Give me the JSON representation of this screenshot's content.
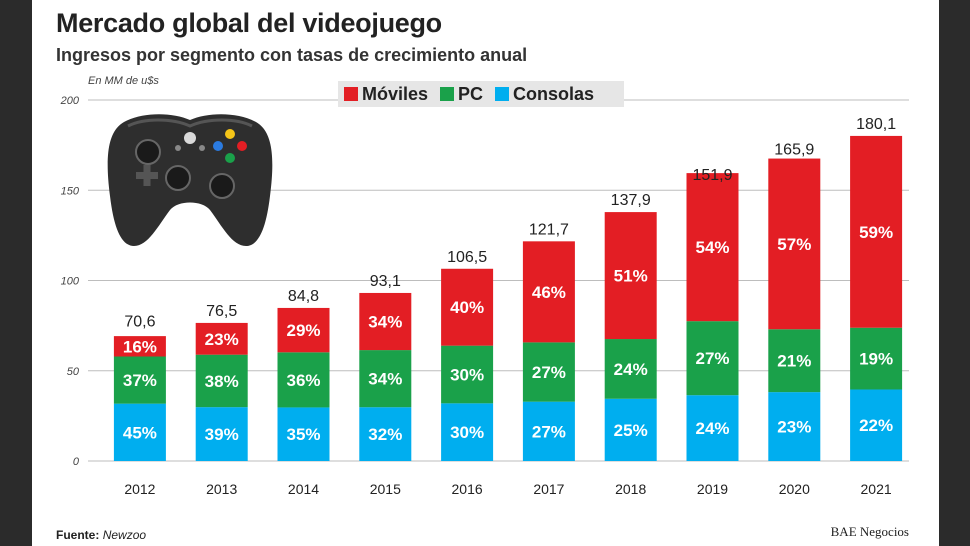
{
  "header": {
    "title": "Mercado global del videojuego",
    "subtitle": "Ingresos por segmento con tasas de crecimiento anual"
  },
  "legend": {
    "items": [
      {
        "label": "Móviles",
        "color": "#e31e24"
      },
      {
        "label": "PC",
        "color": "#1aa14a"
      },
      {
        "label": "Consolas",
        "color": "#00aeef"
      }
    ]
  },
  "footer": {
    "source_label": "Fuente:",
    "source_value": "Newzoo",
    "credit": "BAE Negocios"
  },
  "chart_data": {
    "type": "bar",
    "stacked": true,
    "unit_label": "En MM de u$s",
    "categories": [
      "2012",
      "2013",
      "2014",
      "2015",
      "2016",
      "2017",
      "2018",
      "2019",
      "2020",
      "2021"
    ],
    "totals": [
      70.6,
      76.5,
      84.8,
      93.1,
      106.5,
      121.7,
      137.9,
      151.9,
      165.9,
      180.1
    ],
    "total_labels": [
      "70,6",
      "76,5",
      "84,8",
      "93,1",
      "106,5",
      "121,7",
      "137,9",
      "151,9",
      "165,9",
      "180,1"
    ],
    "series": [
      {
        "name": "Consolas",
        "color": "#00aeef",
        "shares": [
          45,
          39,
          35,
          32,
          30,
          27,
          25,
          24,
          23,
          22
        ],
        "labels": [
          "45%",
          "39%",
          "35%",
          "32%",
          "30%",
          "27%",
          "25%",
          "24%",
          "23%",
          "22%"
        ]
      },
      {
        "name": "PC",
        "color": "#1aa14a",
        "shares": [
          37,
          38,
          36,
          34,
          30,
          27,
          24,
          27,
          21,
          19
        ],
        "labels": [
          "37%",
          "38%",
          "36%",
          "34%",
          "30%",
          "27%",
          "24%",
          "27%",
          "21%",
          "19%"
        ]
      },
      {
        "name": "Móviles",
        "color": "#e31e24",
        "shares": [
          16,
          23,
          29,
          34,
          40,
          46,
          51,
          54,
          57,
          59
        ],
        "labels": [
          "16%",
          "23%",
          "29%",
          "34%",
          "40%",
          "46%",
          "51%",
          "54%",
          "57%",
          "59%"
        ]
      }
    ],
    "yticks": [
      0,
      50,
      100,
      150,
      200
    ],
    "ylim": [
      0,
      200
    ],
    "grid": true,
    "legend_position": "top-center"
  }
}
